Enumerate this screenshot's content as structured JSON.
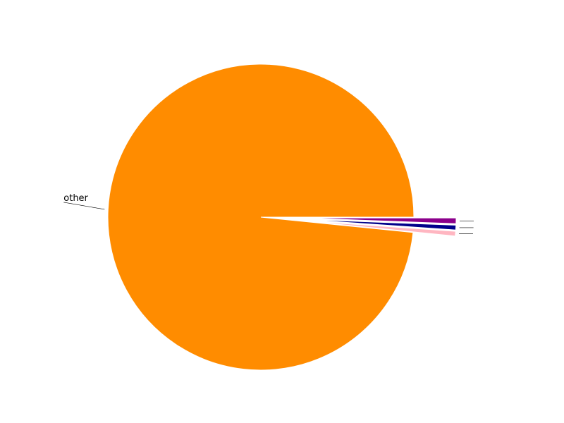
{
  "chart_data": {
    "type": "pie",
    "slices": [
      {
        "label": "other",
        "value": 98.4,
        "color": "#FF8C00",
        "explode": false
      },
      {
        "label": "",
        "value": 0.5,
        "color": "#FFB6C1",
        "explode": true
      },
      {
        "label": "",
        "value": 0.5,
        "color": "#00008B",
        "explode": true
      },
      {
        "label": "",
        "value": 0.6,
        "color": "#8B008B",
        "explode": true
      }
    ],
    "legend": false,
    "grid": false
  }
}
